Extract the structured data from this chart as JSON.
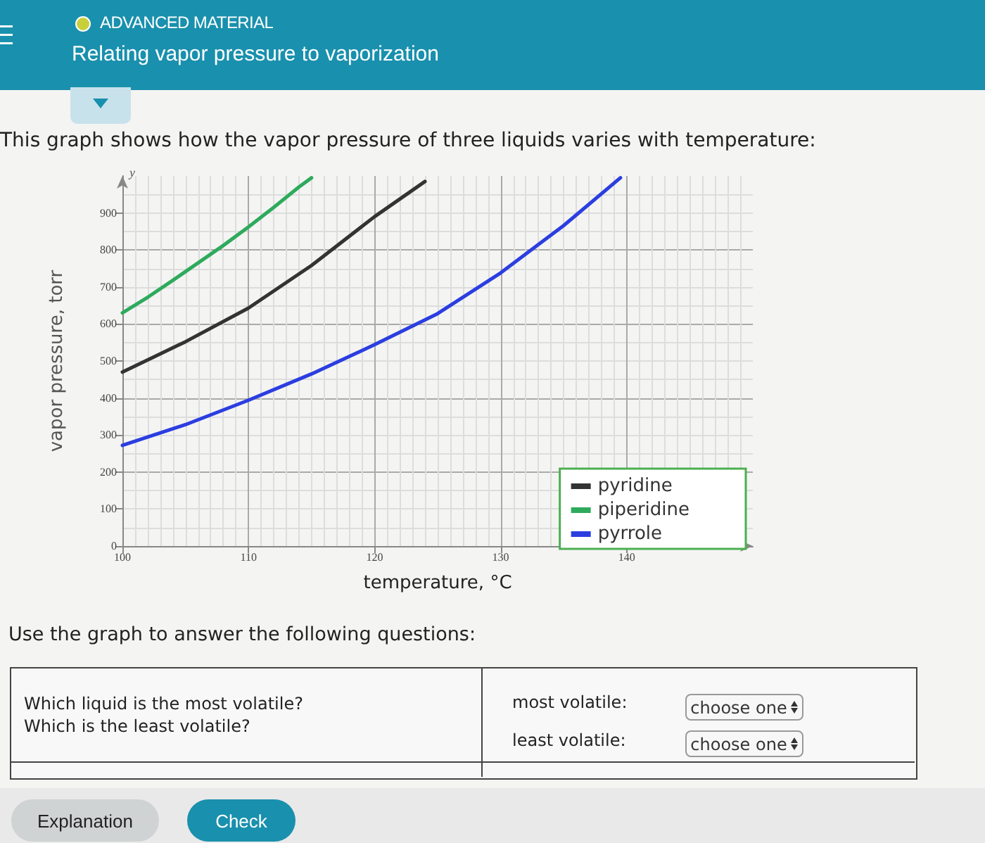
{
  "chart_data": {
    "type": "line",
    "title": "Relating vapor pressure to vaporization",
    "subtitle": "This graph shows how the vapor pressure of three liquids varies with temperature:",
    "xlabel": "temperature, °C",
    "ylabel": "vapor pressure, torr",
    "annotations": [
      "ADVANCED MATERIAL",
      "Use the graph to answer the following questions:",
      "Which liquid is the most volatile?",
      "Which is the least volatile?",
      "most volatile:",
      "least volatile:",
      "choose one",
      "choose one",
      "Explanation",
      "Check",
      "y"
    ],
    "xlim": [
      100,
      150
    ],
    "xticks": [
      100,
      110,
      120,
      130,
      140
    ],
    "ylim": [
      0,
      1000
    ],
    "yticks": [
      0,
      100,
      200,
      300,
      400,
      500,
      600,
      700,
      800,
      900
    ],
    "grid": true,
    "legend": "bottom right",
    "series": [
      {
        "name": "pyridine",
        "color": "#333333",
        "x": [
          100,
          105,
          110,
          115,
          120,
          124
        ],
        "values": [
          470,
          552,
          643,
          758,
          890,
          985
        ]
      },
      {
        "name": "piperidine",
        "color": "#2eaa5c",
        "x": [
          100,
          102,
          104,
          106,
          108,
          110,
          112,
          114,
          115
        ],
        "values": [
          630,
          672,
          718,
          765,
          812,
          862,
          915,
          970,
          995
        ]
      },
      {
        "name": "pyrrole",
        "color": "#2b3ee0",
        "x": [
          100,
          105,
          110,
          115,
          120,
          125,
          130,
          135,
          139.5
        ],
        "values": [
          272,
          328,
          394,
          465,
          544,
          628,
          738,
          866,
          995
        ]
      }
    ]
  }
}
